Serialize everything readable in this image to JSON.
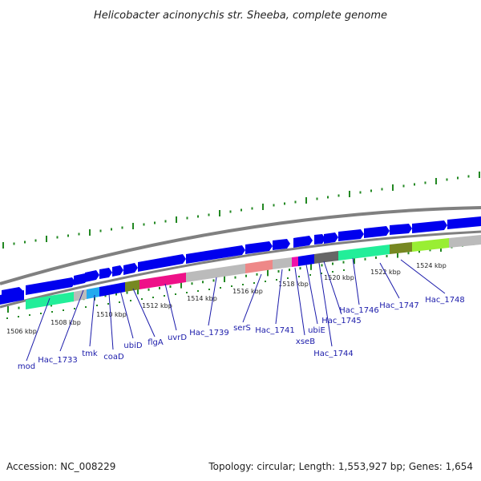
{
  "title": "Helicobacter acinonychis str. Sheeba, complete genome",
  "footer": {
    "accession": "Accession: NC_008229",
    "summary": "Topology: circular; Length: 1,553,927 bp; Genes: 1,654"
  },
  "scale_labels": [
    "1506 kbp",
    "1508 kbp",
    "1510 kbp",
    "1512 kbp",
    "1514 kbp",
    "1516 kbp",
    "1518 kbp",
    "1520 kbp",
    "1522 kbp",
    "1524 kbp"
  ],
  "gene_labels": [
    "mod",
    "Hac_1733",
    "tmk",
    "coaD",
    "ubiD",
    "flgA",
    "uvrD",
    "Hac_1739",
    "serS",
    "Hac_1741",
    "xseB",
    "ubiE",
    "Hac_1744",
    "Hac_1745",
    "Hac_1746",
    "Hac_1747",
    "Hac_1748"
  ],
  "colors": {
    "gene_arrow": "#0000ee",
    "backbone": "#808080",
    "tick_green": "#228822",
    "label_blue": "#1a1aaa",
    "cog_teal": "#22ee99",
    "cog_cyan": "#22aaee",
    "cog_olive": "#778822",
    "cog_magenta": "#ee1188",
    "cog_grey": "#bbbbbb",
    "cog_salmon": "#ee8888",
    "cog_pink": "#ee11aa",
    "cog_darkgrey": "#666666",
    "cog_lime": "#99ee33"
  }
}
